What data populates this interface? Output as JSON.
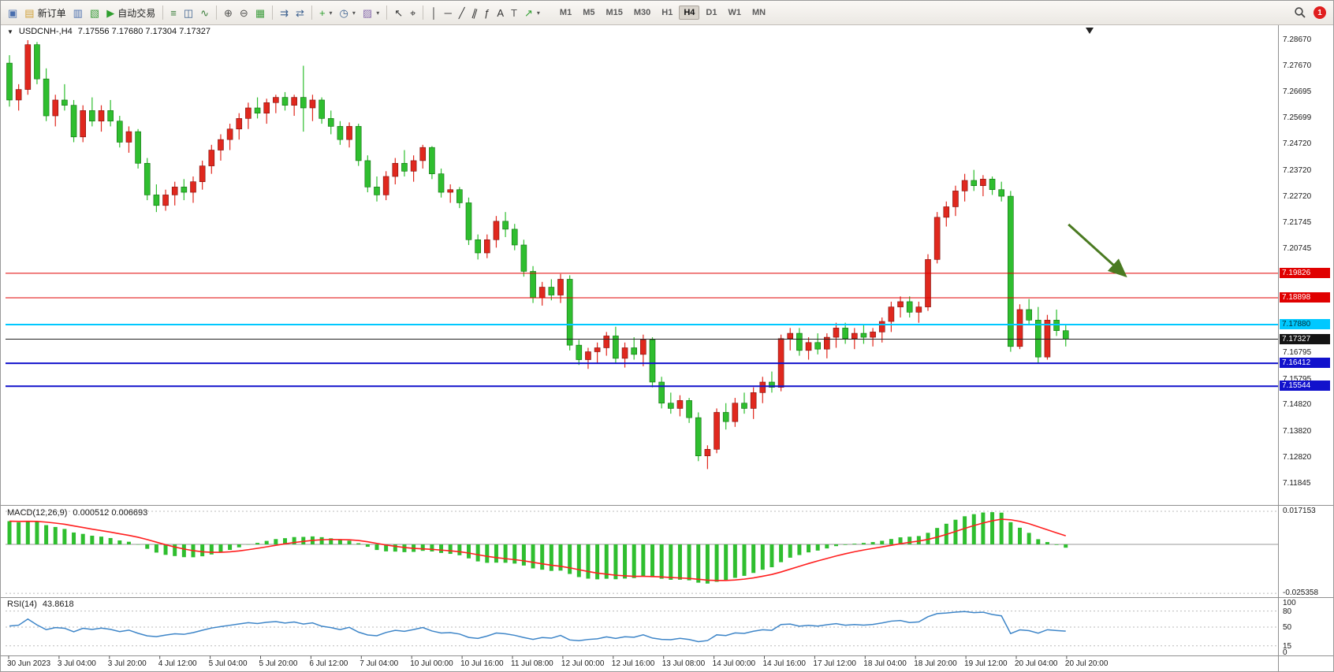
{
  "toolbar": {
    "groups": [
      {
        "items": [
          {
            "name": "charts-window-icon",
            "glyph": "▣",
            "color": "#4a6fae"
          },
          {
            "name": "new-order-button",
            "glyph": "▤",
            "color": "#d1a23a",
            "label": "新订单"
          },
          {
            "name": "market-watch-icon",
            "glyph": "▥",
            "color": "#4a6fae"
          },
          {
            "name": "navigator-icon",
            "glyph": "▧",
            "color": "#3f9e3f"
          },
          {
            "name": "auto-trading-button",
            "glyph": "▶",
            "color": "#2e9e2e",
            "label": "自动交易"
          }
        ]
      },
      {
        "items": [
          {
            "name": "bar-chart-icon",
            "glyph": "≡",
            "color": "#3a7d3a"
          },
          {
            "name": "candlestick-chart-icon",
            "glyph": "◫",
            "color": "#3a5f8e"
          },
          {
            "name": "line-chart-icon",
            "glyph": "∿",
            "color": "#3a7d3a"
          }
        ]
      },
      {
        "items": [
          {
            "name": "zoom-in-icon",
            "glyph": "⊕",
            "color": "#50504e"
          },
          {
            "name": "zoom-out-icon",
            "glyph": "⊖",
            "color": "#50504e"
          },
          {
            "name": "tile-windows-icon",
            "glyph": "▦",
            "color": "#3f9e3f"
          }
        ]
      },
      {
        "items": [
          {
            "name": "auto-scroll-icon",
            "glyph": "⇉",
            "color": "#3a5f8e"
          },
          {
            "name": "chart-shift-icon",
            "glyph": "⇄",
            "color": "#3a5f8e"
          }
        ]
      },
      {
        "items": [
          {
            "name": "indicators-button",
            "glyph": "+",
            "color": "#2e9e2e",
            "dropdown": true
          },
          {
            "name": "periods-button",
            "glyph": "◷",
            "color": "#3a5f8e",
            "dropdown": true
          },
          {
            "name": "templates-button",
            "glyph": "▨",
            "color": "#8a6fae",
            "dropdown": true
          }
        ]
      },
      {
        "items": [
          {
            "name": "cursor-icon",
            "glyph": "↖",
            "color": "#333333"
          },
          {
            "name": "crosshair-icon",
            "glyph": "⌖",
            "color": "#333333"
          }
        ]
      },
      {
        "items": [
          {
            "name": "vertical-line-icon",
            "glyph": "│",
            "color": "#333333"
          },
          {
            "name": "horizontal-line-icon",
            "glyph": "─",
            "color": "#333333"
          },
          {
            "name": "trendline-icon",
            "glyph": "╱",
            "color": "#333333"
          },
          {
            "name": "channel-icon",
            "glyph": "∥",
            "color": "#333333",
            "slant": true
          },
          {
            "name": "fibonacci-icon",
            "glyph": "ƒ",
            "color": "#333333"
          },
          {
            "name": "text-icon",
            "glyph": "A",
            "color": "#333333"
          },
          {
            "name": "label-icon",
            "glyph": "T",
            "color": "#555555"
          },
          {
            "name": "arrows-icon",
            "glyph": "↗",
            "color": "#2e9e2e",
            "dropdown": true
          }
        ]
      }
    ],
    "timeframes": {
      "items": [
        "M1",
        "M5",
        "M15",
        "M30",
        "H1",
        "H4",
        "D1",
        "W1",
        "MN"
      ],
      "active": "H4"
    },
    "notification_badge": "1"
  },
  "chart": {
    "collapse_icon": "▼",
    "symbol_period": "USDCNH-,H4",
    "ohlc_text": "7.17556 7.17680 7.17304 7.17327"
  },
  "price_axis": {
    "ticks": [
      "7.28670",
      "7.27670",
      "7.26695",
      "7.25699",
      "7.24720",
      "7.23720",
      "7.22720",
      "7.21745",
      "7.20745",
      "7.16795",
      "7.15795",
      "7.14820",
      "7.13820",
      "7.12820",
      "7.11845"
    ],
    "tags": [
      {
        "label": "7.19826",
        "price": 7.19826,
        "bg": "#e00000",
        "fg": "#ffffff"
      },
      {
        "label": "7.18898",
        "price": 7.18898,
        "bg": "#e00000",
        "fg": "#ffffff"
      },
      {
        "label": "7.17880",
        "price": 7.1788,
        "bg": "#00c8ff",
        "fg": "#00303a"
      },
      {
        "label": "7.17327",
        "price": 7.17327,
        "bg": "#141414",
        "fg": "#ffffff"
      },
      {
        "label": "7.16412",
        "price": 7.16412,
        "bg": "#1212cc",
        "fg": "#ffffff"
      },
      {
        "label": "7.15544",
        "price": 7.15544,
        "bg": "#1212cc",
        "fg": "#ffffff"
      }
    ]
  },
  "macd": {
    "name": "MACD(12,26,9)",
    "values": "0.000512 0.006693",
    "axis_top": "0.017153",
    "axis_bottom": "-0.025358"
  },
  "rsi": {
    "name": "RSI(14)",
    "value": "43.8618",
    "axis": [
      {
        "label": "100",
        "value": 100
      },
      {
        "label": "80",
        "value": 80
      },
      {
        "label": "50",
        "value": 50
      },
      {
        "label": "15",
        "value": 15
      },
      {
        "label": "0",
        "value": 0
      }
    ],
    "levels": [
      80,
      50,
      15
    ]
  },
  "time_axis": {
    "labels": [
      "30 Jun 2023",
      "3 Jul 04:00",
      "3 Jul 20:00",
      "4 Jul 12:00",
      "5 Jul 04:00",
      "5 Jul 20:00",
      "6 Jul 12:00",
      "7 Jul 04:00",
      "10 Jul 00:00",
      "10 Jul 16:00",
      "11 Jul 08:00",
      "12 Jul 00:00",
      "12 Jul 16:00",
      "13 Jul 08:00",
      "14 Jul 00:00",
      "14 Jul 16:00",
      "17 Jul 12:00",
      "18 Jul 04:00",
      "18 Jul 20:00",
      "19 Jul 12:00",
      "20 Jul 04:00",
      "20 Jul 20:00"
    ]
  },
  "colors": {
    "bull": "#e0281e",
    "bull_border": "#7a100c",
    "bear": "#2fbe2f",
    "bear_border": "#0d6e0d",
    "macd_hist": "#2fbe2f",
    "macd_signal": "#ff1f1f",
    "rsi_line": "#3d85c8",
    "arrow": "#4a7a21",
    "grid": "#909090"
  },
  "chart_data": {
    "type": "candlestick",
    "symbol": "USDCNH-",
    "timeframe": "H4",
    "current_ohlc": [
      7.17556,
      7.1768,
      7.17304,
      7.17327
    ],
    "y_visible_range": [
      7.1104,
      7.2924
    ],
    "price_lines": [
      {
        "price": 7.19826,
        "color": "#e00000",
        "width": 1
      },
      {
        "price": 7.18898,
        "color": "#e00000",
        "width": 1
      },
      {
        "price": 7.1788,
        "color": "#00c8ff",
        "width": 2
      },
      {
        "price": 7.17327,
        "color": "#222222",
        "width": 1
      },
      {
        "price": 7.16412,
        "color": "#1212cc",
        "width": 2
      },
      {
        "price": 7.15544,
        "color": "#1212cc",
        "width": 2
      }
    ],
    "annotations": [
      {
        "type": "arrow",
        "from": {
          "bar": 115.3,
          "price": 7.2168
        },
        "to": {
          "bar": 121.5,
          "price": 7.1973
        },
        "color": "#4a7a21"
      }
    ],
    "shift_marker_bar": 117.6,
    "indicators": [
      {
        "name": "MACD",
        "params": [
          12,
          26,
          9
        ],
        "current_values": [
          0.000512,
          0.006693
        ],
        "axis": [
          0.017153,
          -0.025358
        ]
      },
      {
        "name": "RSI",
        "params": [
          14
        ],
        "current_value": 43.8618,
        "levels": [
          80,
          50,
          15
        ]
      }
    ],
    "candles": [
      [
        7.278,
        7.281,
        7.2615,
        7.264
      ],
      [
        7.264,
        7.27,
        7.26,
        7.268
      ],
      [
        7.268,
        7.2867,
        7.266,
        7.285
      ],
      [
        7.285,
        7.286,
        7.27,
        7.272
      ],
      [
        7.272,
        7.276,
        7.256,
        7.258
      ],
      [
        7.258,
        7.266,
        7.254,
        7.264
      ],
      [
        7.264,
        7.27,
        7.26,
        7.262
      ],
      [
        7.262,
        7.264,
        7.248,
        7.25
      ],
      [
        7.25,
        7.262,
        7.248,
        7.26
      ],
      [
        7.26,
        7.265,
        7.254,
        7.256
      ],
      [
        7.256,
        7.262,
        7.252,
        7.26
      ],
      [
        7.26,
        7.264,
        7.254,
        7.256
      ],
      [
        7.256,
        7.258,
        7.246,
        7.248
      ],
      [
        7.248,
        7.254,
        7.244,
        7.252
      ],
      [
        7.252,
        7.253,
        7.238,
        7.24
      ],
      [
        7.24,
        7.242,
        7.226,
        7.228
      ],
      [
        7.228,
        7.232,
        7.2215,
        7.224
      ],
      [
        7.224,
        7.23,
        7.222,
        7.228
      ],
      [
        7.228,
        7.233,
        7.224,
        7.231
      ],
      [
        7.231,
        7.234,
        7.226,
        7.229
      ],
      [
        7.229,
        7.235,
        7.225,
        7.233
      ],
      [
        7.233,
        7.241,
        7.23,
        7.239
      ],
      [
        7.239,
        7.247,
        7.236,
        7.245
      ],
      [
        7.245,
        7.251,
        7.241,
        7.249
      ],
      [
        7.249,
        7.255,
        7.245,
        7.253
      ],
      [
        7.253,
        7.259,
        7.249,
        7.257
      ],
      [
        7.257,
        7.263,
        7.253,
        7.261
      ],
      [
        7.261,
        7.265,
        7.257,
        7.259
      ],
      [
        7.259,
        7.2645,
        7.255,
        7.263
      ],
      [
        7.263,
        7.266,
        7.259,
        7.265
      ],
      [
        7.265,
        7.267,
        7.26,
        7.262
      ],
      [
        7.262,
        7.266,
        7.258,
        7.265
      ],
      [
        7.265,
        7.277,
        7.252,
        7.261
      ],
      [
        7.261,
        7.266,
        7.256,
        7.264
      ],
      [
        7.264,
        7.265,
        7.255,
        7.257
      ],
      [
        7.257,
        7.26,
        7.251,
        7.254
      ],
      [
        7.254,
        7.256,
        7.247,
        7.249
      ],
      [
        7.249,
        7.2555,
        7.246,
        7.254
      ],
      [
        7.254,
        7.255,
        7.239,
        7.241
      ],
      [
        7.241,
        7.243,
        7.229,
        7.231
      ],
      [
        7.231,
        7.235,
        7.2255,
        7.228
      ],
      [
        7.228,
        7.237,
        7.226,
        7.235
      ],
      [
        7.235,
        7.242,
        7.232,
        7.24
      ],
      [
        7.24,
        7.245,
        7.235,
        7.237
      ],
      [
        7.237,
        7.243,
        7.233,
        7.241
      ],
      [
        7.241,
        7.247,
        7.238,
        7.246
      ],
      [
        7.246,
        7.2465,
        7.234,
        7.236
      ],
      [
        7.236,
        7.238,
        7.227,
        7.229
      ],
      [
        7.229,
        7.232,
        7.225,
        7.23
      ],
      [
        7.23,
        7.231,
        7.223,
        7.225
      ],
      [
        7.225,
        7.227,
        7.209,
        7.211
      ],
      [
        7.211,
        7.213,
        7.2035,
        7.206
      ],
      [
        7.206,
        7.213,
        7.204,
        7.211
      ],
      [
        7.211,
        7.22,
        7.208,
        7.218
      ],
      [
        7.218,
        7.2215,
        7.212,
        7.215
      ],
      [
        7.215,
        7.217,
        7.207,
        7.209
      ],
      [
        7.209,
        7.211,
        7.197,
        7.199
      ],
      [
        7.199,
        7.201,
        7.187,
        7.189
      ],
      [
        7.189,
        7.195,
        7.186,
        7.193
      ],
      [
        7.193,
        7.196,
        7.188,
        7.19
      ],
      [
        7.19,
        7.198,
        7.187,
        7.196
      ],
      [
        7.196,
        7.1975,
        7.169,
        7.171
      ],
      [
        7.171,
        7.173,
        7.1635,
        7.1655
      ],
      [
        7.1655,
        7.17,
        7.162,
        7.1685
      ],
      [
        7.1685,
        7.172,
        7.164,
        7.17
      ],
      [
        7.17,
        7.176,
        7.167,
        7.1745
      ],
      [
        7.1745,
        7.178,
        7.164,
        7.166
      ],
      [
        7.166,
        7.172,
        7.1625,
        7.17
      ],
      [
        7.17,
        7.174,
        7.1655,
        7.1675
      ],
      [
        7.1675,
        7.175,
        7.163,
        7.173
      ],
      [
        7.173,
        7.174,
        7.155,
        7.157
      ],
      [
        7.157,
        7.159,
        7.147,
        7.149
      ],
      [
        7.149,
        7.153,
        7.145,
        7.147
      ],
      [
        7.147,
        7.152,
        7.144,
        7.15
      ],
      [
        7.15,
        7.151,
        7.1415,
        7.1435
      ],
      [
        7.1435,
        7.1455,
        7.127,
        7.129
      ],
      [
        7.129,
        7.133,
        7.124,
        7.1315
      ],
      [
        7.1315,
        7.147,
        7.13,
        7.1455
      ],
      [
        7.1455,
        7.149,
        7.139,
        7.142
      ],
      [
        7.142,
        7.151,
        7.14,
        7.149
      ],
      [
        7.149,
        7.153,
        7.145,
        7.147
      ],
      [
        7.147,
        7.155,
        7.143,
        7.153
      ],
      [
        7.153,
        7.159,
        7.149,
        7.157
      ],
      [
        7.157,
        7.161,
        7.153,
        7.155
      ],
      [
        7.155,
        7.175,
        7.1535,
        7.1735
      ],
      [
        7.1735,
        7.1775,
        7.169,
        7.1755
      ],
      [
        7.1755,
        7.1775,
        7.167,
        7.169
      ],
      [
        7.169,
        7.174,
        7.1655,
        7.172
      ],
      [
        7.172,
        7.1755,
        7.1675,
        7.1695
      ],
      [
        7.1695,
        7.1755,
        7.166,
        7.174
      ],
      [
        7.174,
        7.1795,
        7.17,
        7.1775
      ],
      [
        7.1775,
        7.1795,
        7.1715,
        7.1735
      ],
      [
        7.1735,
        7.1775,
        7.1695,
        7.1755
      ],
      [
        7.1755,
        7.1785,
        7.1715,
        7.174
      ],
      [
        7.174,
        7.1775,
        7.1705,
        7.176
      ],
      [
        7.176,
        7.1815,
        7.172,
        7.18
      ],
      [
        7.18,
        7.1875,
        7.176,
        7.1855
      ],
      [
        7.1855,
        7.1895,
        7.1815,
        7.1875
      ],
      [
        7.1875,
        7.1895,
        7.1815,
        7.1835
      ],
      [
        7.1835,
        7.1875,
        7.1795,
        7.1855
      ],
      [
        7.1855,
        7.2055,
        7.184,
        7.2035
      ],
      [
        7.2035,
        7.2215,
        7.202,
        7.2195
      ],
      [
        7.2195,
        7.2255,
        7.216,
        7.2235
      ],
      [
        7.2235,
        7.2315,
        7.22,
        7.2295
      ],
      [
        7.2295,
        7.236,
        7.2255,
        7.2335
      ],
      [
        7.2335,
        7.2375,
        7.2295,
        7.2315
      ],
      [
        7.2315,
        7.2355,
        7.2275,
        7.234
      ],
      [
        7.234,
        7.235,
        7.228,
        7.23
      ],
      [
        7.23,
        7.233,
        7.2255,
        7.2275
      ],
      [
        7.2275,
        7.2295,
        7.1685,
        7.1705
      ],
      [
        7.1705,
        7.1865,
        7.1695,
        7.1845
      ],
      [
        7.1845,
        7.1885,
        7.1785,
        7.1805
      ],
      [
        7.1805,
        7.1855,
        7.164,
        7.1665
      ],
      [
        7.1665,
        7.1825,
        7.1655,
        7.1805
      ],
      [
        7.1805,
        7.1845,
        7.1745,
        7.1765
      ],
      [
        7.1765,
        7.1785,
        7.1705,
        7.1733
      ]
    ]
  }
}
